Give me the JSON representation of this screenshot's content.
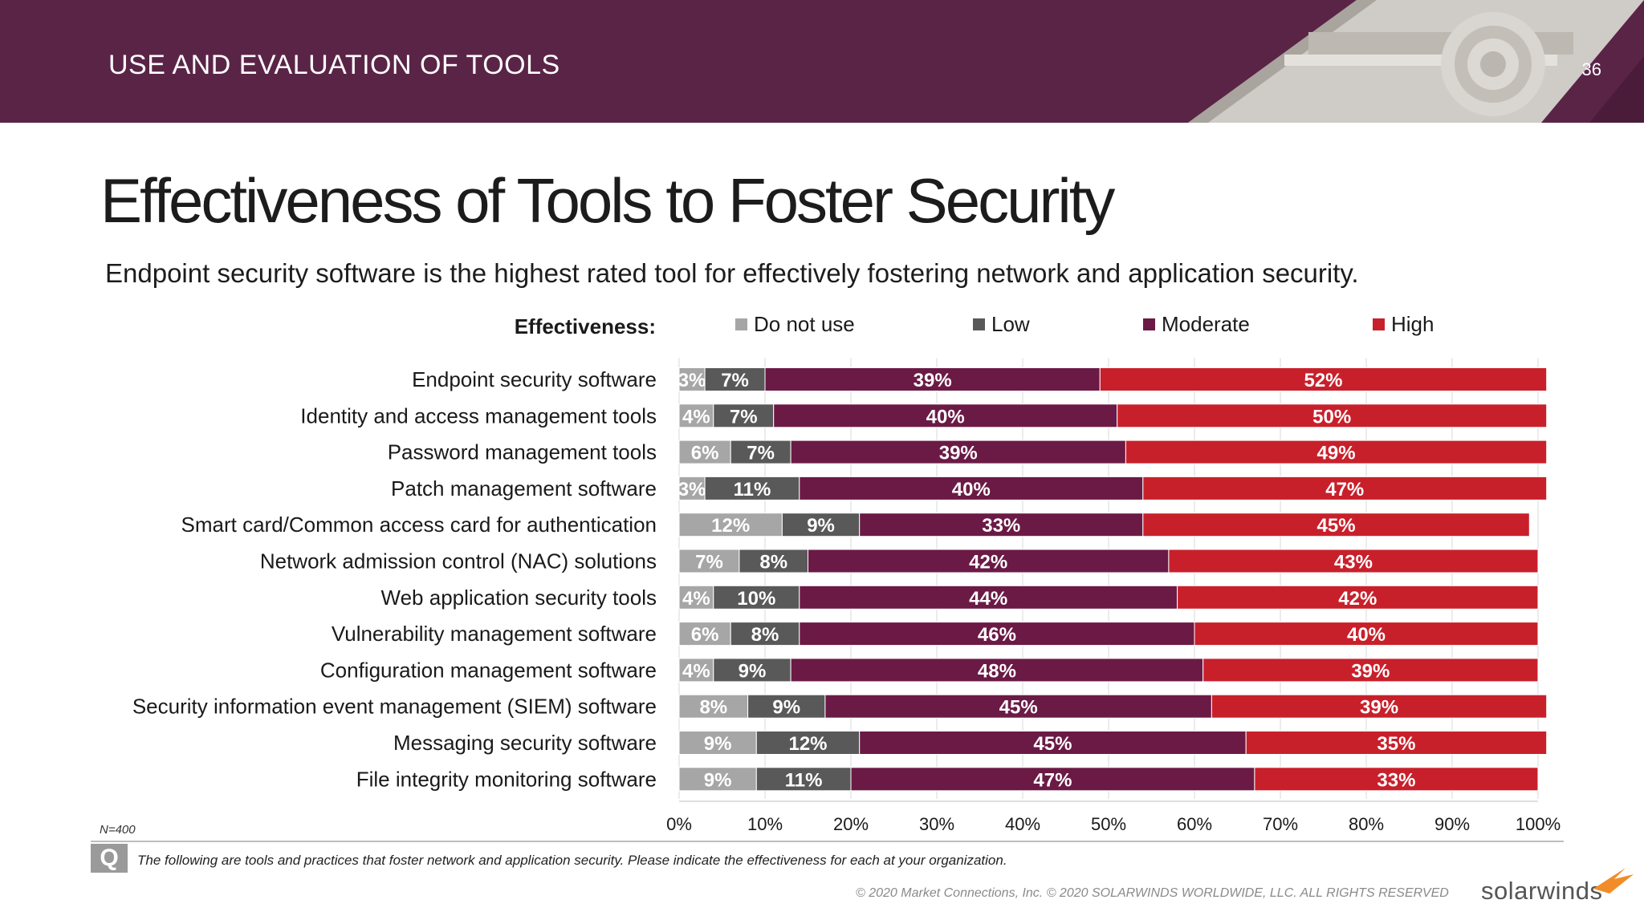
{
  "header": {
    "section_title": "USE AND EVALUATION OF TOOLS",
    "page_number": "36"
  },
  "title": "Effectiveness of Tools to Foster Security",
  "subtitle": "Endpoint security software is the highest rated tool for effectively fostering network and application security.",
  "footnote_n": "N=400",
  "question_icon": "Q",
  "question": "The following are tools and practices that foster network and application security. Please indicate the effectiveness for each at your organization.",
  "copyright": "© 2020 Market Connections, Inc. © 2020 SOLARWINDS WORLDWIDE, LLC. ALL RIGHTS RESERVED",
  "logo_text": "solarwinds",
  "colors": {
    "header_bg": "#5a2447",
    "do_not_use": "#a6a6a6",
    "low": "#595959",
    "moderate": "#6b1a45",
    "high": "#c8202b",
    "logo_accent": "#f28c28"
  },
  "chart_data": {
    "type": "bar",
    "orientation": "horizontal",
    "stacked": true,
    "legend_title": "Effectiveness:",
    "legend_position": "top",
    "categories": [
      "Endpoint security software",
      "Identity and access management tools",
      "Password management tools",
      "Patch management software",
      "Smart card/Common access card for authentication",
      "Network admission control (NAC) solutions",
      "Web application security tools",
      "Vulnerability management software",
      "Configuration management software",
      "Security information event management (SIEM) software",
      "Messaging security software",
      "File integrity monitoring software"
    ],
    "series": [
      {
        "name": "Do not use",
        "color": "#a6a6a6",
        "values": [
          3,
          4,
          6,
          3,
          12,
          7,
          4,
          6,
          4,
          8,
          9,
          9
        ]
      },
      {
        "name": "Low",
        "color": "#595959",
        "values": [
          7,
          7,
          7,
          11,
          9,
          8,
          10,
          8,
          9,
          9,
          12,
          11
        ]
      },
      {
        "name": "Moderate",
        "color": "#6b1a45",
        "values": [
          39,
          40,
          39,
          40,
          33,
          42,
          44,
          46,
          48,
          45,
          45,
          47
        ]
      },
      {
        "name": "High",
        "color": "#c8202b",
        "values": [
          52,
          50,
          49,
          47,
          45,
          43,
          42,
          40,
          39,
          39,
          35,
          33
        ]
      }
    ],
    "value_suffix": "%",
    "xlim": [
      0,
      100
    ],
    "xticks": [
      "0%",
      "10%",
      "20%",
      "30%",
      "40%",
      "50%",
      "60%",
      "70%",
      "80%",
      "90%",
      "100%"
    ],
    "grid": true
  }
}
